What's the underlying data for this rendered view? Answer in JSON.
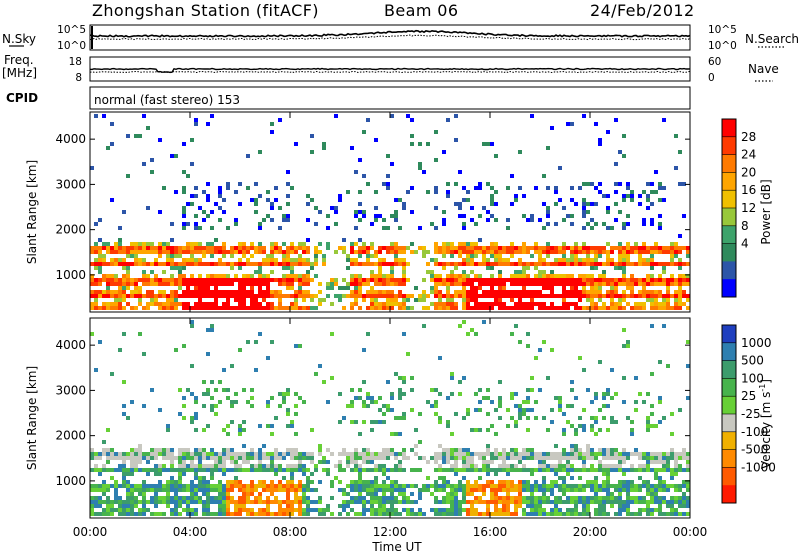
{
  "header": {
    "station": "Zhongshan Station (fitACF)",
    "beam": "Beam 06",
    "date": "24/Feb/2012"
  },
  "summary_panels": {
    "nsky_label": "N.Sky",
    "nsky_ticks": [
      "10^5",
      "10^0"
    ],
    "nsearch_label": "N.Search",
    "nsearch_ticks": [
      "10^5",
      "10^0"
    ],
    "freq_label_top": "Freq.",
    "freq_label_unit": "[MHz]",
    "freq_ticks": [
      "18",
      "8"
    ],
    "nave_label": "Nave",
    "nave_ticks": [
      "60",
      "0"
    ],
    "cpid_label": "CPID",
    "cpid_value": "normal (fast stereo) 153"
  },
  "chart_data": [
    {
      "type": "heatmap",
      "name": "power",
      "ylabel": "Slant Range [km]",
      "y_ticks": [
        1000,
        2000,
        3000,
        4000
      ],
      "ylim": [
        180,
        4600
      ],
      "x_ticks": [
        "00:00",
        "04:00",
        "08:00",
        "12:00",
        "16:00",
        "20:00",
        "00:00"
      ],
      "xlim_hours": [
        0,
        24
      ],
      "colorbar_label": "Power [dB]",
      "colorbar_ticks": [
        "28",
        "24",
        "20",
        "16",
        "12",
        "8",
        "4"
      ],
      "colorbar_colors": [
        "#ff0000",
        "#ff3a00",
        "#ff7a00",
        "#ffa500",
        "#f0c000",
        "#98c83a",
        "#3da36b",
        "#2f8a5c",
        "#2c55a8",
        "#0000ff"
      ]
    },
    {
      "type": "heatmap",
      "name": "velocity",
      "ylabel": "Slant Range [km]",
      "y_ticks": [
        1000,
        2000,
        3000,
        4000
      ],
      "ylim": [
        180,
        4600
      ],
      "x_ticks": [
        "00:00",
        "04:00",
        "08:00",
        "12:00",
        "16:00",
        "20:00",
        "00:00"
      ],
      "xlim_hours": [
        0,
        24
      ],
      "xlabel": "Time UT",
      "colorbar_label": "Velocity [m s",
      "colorbar_label_sup": "-1",
      "colorbar_label_end": "]",
      "colorbar_ticks": [
        "1000",
        "500",
        "100",
        "25",
        "-25",
        "-100",
        "-500",
        "-1000"
      ],
      "colorbar_colors": [
        "#1f3fbf",
        "#2e7fb0",
        "#3c9c6c",
        "#47b34c",
        "#67d036",
        "#c8c8c0",
        "#f0b000",
        "#ff8a00",
        "#ff5a00",
        "#ff1a00"
      ]
    }
  ]
}
